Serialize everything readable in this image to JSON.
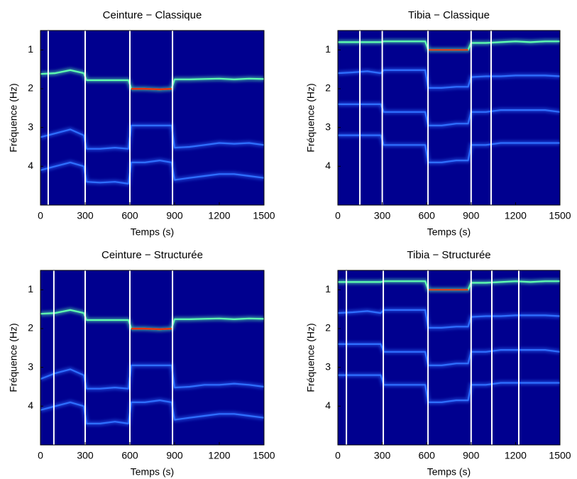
{
  "chart_data": [
    {
      "type": "spectrogram",
      "title": "Ceinture − Classique",
      "xlabel": "Temps (s)",
      "ylabel": "Fréquence (Hz)",
      "xlim": [
        0,
        1500
      ],
      "ylim": [
        0.5,
        5
      ],
      "y_inverted": true,
      "xticks": [
        0,
        300,
        600,
        900,
        1200,
        1500
      ],
      "yticks": [
        1,
        2,
        3,
        4
      ],
      "background": "#00008f",
      "marker_color": "#ffffff",
      "markers": [
        52,
        300,
        600,
        886
      ],
      "x": [
        0,
        100,
        200,
        290,
        310,
        400,
        500,
        590,
        610,
        700,
        800,
        880,
        900,
        1000,
        1100,
        1200,
        1300,
        1400,
        1500
      ],
      "series": [
        {
          "color": "#2f6fff",
          "values": [
            3.25,
            3.15,
            3.05,
            3.2,
            3.55,
            3.55,
            3.52,
            3.55,
            2.95,
            2.95,
            2.95,
            2.95,
            3.52,
            3.5,
            3.45,
            3.4,
            3.42,
            3.4,
            3.45
          ]
        },
        {
          "color": "#2f6fff",
          "values": [
            4.1,
            4.0,
            3.9,
            4.0,
            4.4,
            4.42,
            4.4,
            4.45,
            3.9,
            3.9,
            3.85,
            3.9,
            4.35,
            4.3,
            4.25,
            4.2,
            4.2,
            4.25,
            4.3
          ]
        },
        {
          "color": "#60ffb0",
          "values": [
            1.62,
            1.6,
            1.52,
            1.6,
            1.78,
            1.78,
            1.78,
            1.78,
            2.0,
            2.0,
            2.02,
            2.0,
            1.76,
            1.76,
            1.75,
            1.74,
            1.76,
            1.74,
            1.75
          ]
        },
        {
          "color": "#e83010",
          "values": [
            null,
            null,
            null,
            null,
            null,
            null,
            null,
            null,
            2.0,
            2.0,
            2.02,
            2.0,
            null,
            null,
            null,
            null,
            null,
            null,
            null
          ]
        }
      ]
    },
    {
      "type": "spectrogram",
      "title": "Tibia − Classique",
      "xlabel": "Temps (s)",
      "ylabel": "Fréquence (Hz)",
      "xlim": [
        0,
        1500
      ],
      "ylim": [
        0.5,
        5
      ],
      "y_inverted": true,
      "xticks": [
        0,
        300,
        600,
        900,
        1200,
        1500
      ],
      "yticks": [
        1,
        2,
        3,
        4
      ],
      "background": "#00008f",
      "marker_color": "#ffffff",
      "markers": [
        149,
        300,
        609,
        900,
        1035
      ],
      "x": [
        0,
        100,
        200,
        290,
        310,
        400,
        500,
        590,
        610,
        700,
        800,
        880,
        900,
        1000,
        1100,
        1200,
        1300,
        1400,
        1500
      ],
      "series": [
        {
          "color": "#2f6fff",
          "values": [
            1.6,
            1.58,
            1.55,
            1.6,
            1.52,
            1.52,
            1.52,
            1.52,
            1.98,
            1.98,
            1.95,
            1.95,
            1.7,
            1.68,
            1.68,
            1.66,
            1.66,
            1.66,
            1.68
          ]
        },
        {
          "color": "#2f6fff",
          "values": [
            2.4,
            2.4,
            2.4,
            2.4,
            2.6,
            2.6,
            2.6,
            2.6,
            2.95,
            2.95,
            2.9,
            2.9,
            2.6,
            2.6,
            2.55,
            2.55,
            2.55,
            2.55,
            2.6
          ]
        },
        {
          "color": "#2f6fff",
          "values": [
            3.2,
            3.2,
            3.2,
            3.2,
            3.45,
            3.45,
            3.45,
            3.45,
            3.9,
            3.9,
            3.85,
            3.85,
            3.45,
            3.45,
            3.4,
            3.4,
            3.4,
            3.4,
            3.4
          ]
        },
        {
          "color": "#60ffb0",
          "values": [
            0.8,
            0.8,
            0.8,
            0.8,
            0.78,
            0.78,
            0.78,
            0.78,
            1.0,
            1.0,
            1.0,
            1.0,
            0.82,
            0.82,
            0.8,
            0.78,
            0.8,
            0.78,
            0.78
          ]
        },
        {
          "color": "#e83010",
          "values": [
            null,
            null,
            null,
            null,
            null,
            null,
            null,
            null,
            1.0,
            1.0,
            1.0,
            1.0,
            null,
            null,
            null,
            null,
            null,
            null,
            null
          ]
        }
      ]
    },
    {
      "type": "spectrogram",
      "title": "Ceinture − Structurée",
      "xlabel": "Temps (s)",
      "ylabel": "Fréquence (Hz)",
      "xlim": [
        0,
        1500
      ],
      "ylim": [
        0.5,
        5
      ],
      "y_inverted": true,
      "xticks": [
        0,
        300,
        600,
        900,
        1200,
        1500
      ],
      "yticks": [
        1,
        2,
        3,
        4
      ],
      "background": "#00008f",
      "marker_color": "#ffffff",
      "markers": [
        90,
        300,
        600,
        886
      ],
      "x": [
        0,
        100,
        200,
        290,
        310,
        400,
        500,
        590,
        610,
        700,
        800,
        880,
        900,
        1000,
        1100,
        1200,
        1300,
        1400,
        1500
      ],
      "series": [
        {
          "color": "#2f6fff",
          "values": [
            3.3,
            3.15,
            3.05,
            3.2,
            3.55,
            3.55,
            3.52,
            3.55,
            2.95,
            2.95,
            2.95,
            2.95,
            3.52,
            3.5,
            3.45,
            3.45,
            3.42,
            3.45,
            3.5
          ]
        },
        {
          "color": "#2f6fff",
          "values": [
            4.1,
            4.0,
            3.9,
            4.0,
            4.45,
            4.45,
            4.4,
            4.45,
            3.9,
            3.9,
            3.85,
            3.9,
            4.35,
            4.3,
            4.25,
            4.2,
            4.2,
            4.25,
            4.3
          ]
        },
        {
          "color": "#60ffb0",
          "values": [
            1.62,
            1.6,
            1.52,
            1.6,
            1.78,
            1.78,
            1.78,
            1.78,
            2.0,
            2.0,
            2.02,
            2.0,
            1.76,
            1.76,
            1.75,
            1.74,
            1.76,
            1.74,
            1.75
          ]
        },
        {
          "color": "#e83010",
          "values": [
            null,
            null,
            null,
            null,
            null,
            null,
            null,
            null,
            2.0,
            2.0,
            2.02,
            2.0,
            null,
            null,
            null,
            null,
            null,
            null,
            null
          ]
        }
      ]
    },
    {
      "type": "spectrogram",
      "title": "Tibia − Structurée",
      "xlabel": "Temps (s)",
      "ylabel": "Fréquence (Hz)",
      "xlim": [
        0,
        1500
      ],
      "ylim": [
        0.5,
        5
      ],
      "y_inverted": true,
      "xticks": [
        0,
        300,
        600,
        900,
        1200,
        1500
      ],
      "yticks": [
        1,
        2,
        3,
        4
      ],
      "background": "#00008f",
      "marker_color": "#ffffff",
      "markers": [
        58,
        307,
        609,
        900,
        1040,
        1222
      ],
      "x": [
        0,
        100,
        200,
        290,
        310,
        400,
        500,
        590,
        610,
        700,
        800,
        880,
        900,
        1000,
        1100,
        1200,
        1300,
        1400,
        1500
      ],
      "series": [
        {
          "color": "#2f6fff",
          "values": [
            1.6,
            1.58,
            1.55,
            1.6,
            1.52,
            1.52,
            1.52,
            1.52,
            1.98,
            1.98,
            1.95,
            1.95,
            1.7,
            1.68,
            1.68,
            1.66,
            1.66,
            1.66,
            1.68
          ]
        },
        {
          "color": "#2f6fff",
          "values": [
            2.4,
            2.4,
            2.4,
            2.4,
            2.6,
            2.6,
            2.6,
            2.6,
            2.95,
            2.95,
            2.9,
            2.9,
            2.6,
            2.6,
            2.55,
            2.55,
            2.55,
            2.55,
            2.6
          ]
        },
        {
          "color": "#2f6fff",
          "values": [
            3.2,
            3.2,
            3.2,
            3.2,
            3.45,
            3.45,
            3.45,
            3.45,
            3.9,
            3.9,
            3.85,
            3.85,
            3.45,
            3.45,
            3.4,
            3.4,
            3.4,
            3.4,
            3.4
          ]
        },
        {
          "color": "#60ffb0",
          "values": [
            0.8,
            0.8,
            0.8,
            0.8,
            0.78,
            0.78,
            0.78,
            0.78,
            1.0,
            1.0,
            1.0,
            1.0,
            0.82,
            0.82,
            0.8,
            0.78,
            0.8,
            0.78,
            0.78
          ]
        },
        {
          "color": "#e83010",
          "values": [
            null,
            null,
            null,
            null,
            null,
            null,
            null,
            null,
            1.0,
            1.0,
            1.0,
            1.0,
            null,
            null,
            null,
            null,
            null,
            null,
            null
          ]
        }
      ]
    }
  ]
}
